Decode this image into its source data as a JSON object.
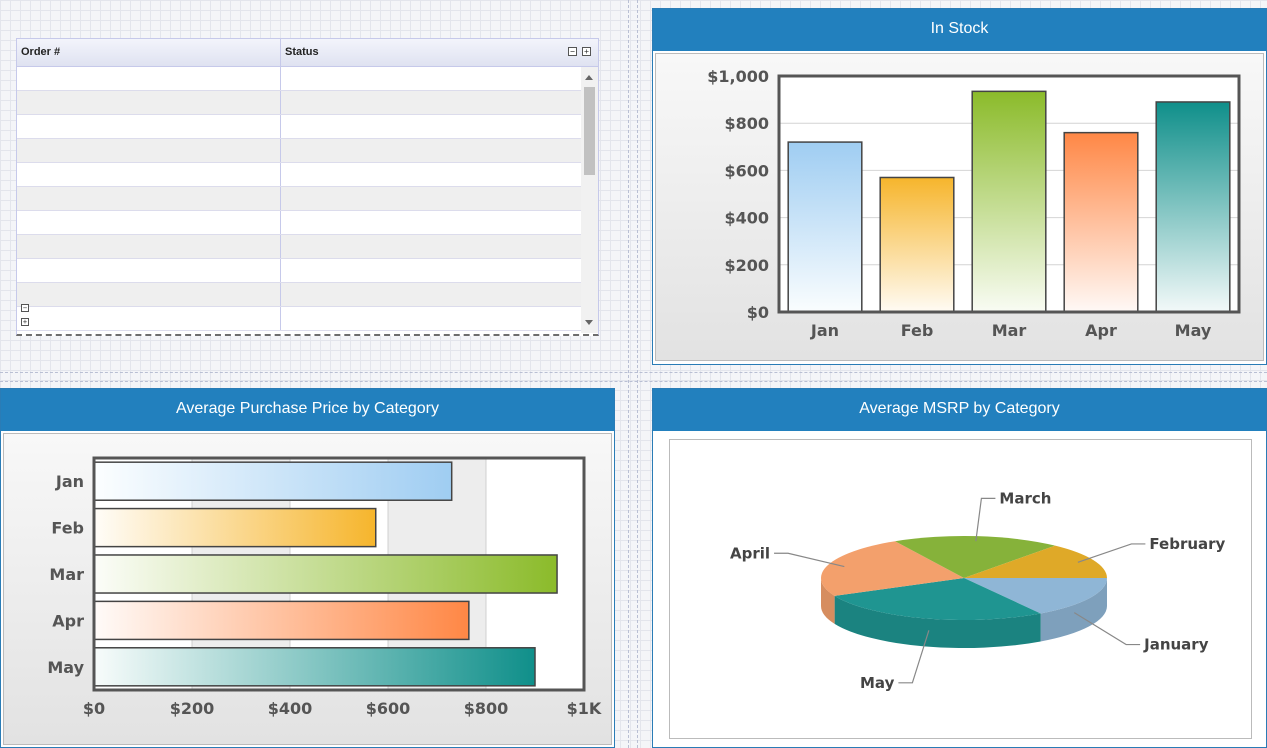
{
  "grid": {
    "columns": [
      "Order #",
      "Status"
    ],
    "row_count": 11,
    "header_buttons": [
      "collapse",
      "expand"
    ],
    "row_buttons": [
      "collapse",
      "expand"
    ]
  },
  "panels": {
    "in_stock": {
      "title": "In Stock"
    },
    "avg_purchase": {
      "title": "Average Purchase Price by Category"
    },
    "avg_msrp": {
      "title": "Average MSRP by Category"
    }
  },
  "chart_data": [
    {
      "type": "bar",
      "title": "In Stock",
      "categories": [
        "Jan",
        "Feb",
        "Mar",
        "Apr",
        "May"
      ],
      "values": [
        720,
        570,
        935,
        760,
        890
      ],
      "ylim": [
        0,
        1000
      ],
      "yticks": [
        "$0",
        "$200",
        "$400",
        "$600",
        "$800",
        "$1,000"
      ],
      "colors": [
        "#9fcdf2",
        "#f6b52c",
        "#8bbb2a",
        "#ff8745",
        "#0f8f8a"
      ],
      "grid": true
    },
    {
      "type": "bar",
      "orientation": "horizontal",
      "title": "Average Purchase Price by Category",
      "categories": [
        "Jan",
        "Feb",
        "Mar",
        "Apr",
        "May"
      ],
      "values": [
        730,
        575,
        945,
        765,
        900
      ],
      "xlim": [
        0,
        1000
      ],
      "xticks": [
        "$0",
        "$200",
        "$400",
        "$600",
        "$800",
        "$1K"
      ],
      "colors": [
        "#9fcdf2",
        "#f6b52c",
        "#8bbb2a",
        "#ff8745",
        "#0f8f8a"
      ],
      "grid": true
    },
    {
      "type": "pie",
      "title": "Average MSRP by Category",
      "labels": [
        "January",
        "May",
        "April",
        "March",
        "February"
      ],
      "values": [
        16,
        27,
        24,
        19,
        14
      ],
      "colors": [
        "#8fb6d6",
        "#1f9591",
        "#f3a06c",
        "#86b23a",
        "#dfa928"
      ]
    }
  ]
}
